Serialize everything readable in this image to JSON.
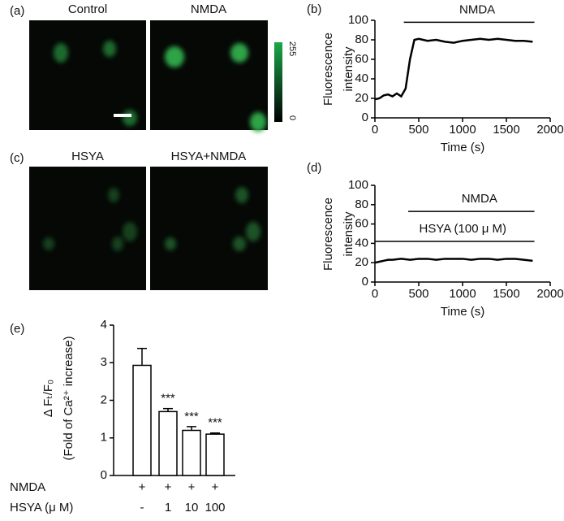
{
  "image_panels": [
    {
      "label": "(a)",
      "titles": [
        "Control",
        "NMDA"
      ],
      "colorbar": [
        "255",
        "0"
      ]
    },
    {
      "label": "(c)",
      "titles": [
        "HSYA",
        "HSYA+NMDA"
      ]
    }
  ],
  "chart_data": [
    {
      "type": "line",
      "label": "(b)",
      "ylabel": [
        "Fluorescence",
        "intensity"
      ],
      "xlabel": "Time (s)",
      "xlim": [
        0,
        2000
      ],
      "xticks": [
        0,
        500,
        1000,
        1500,
        2000
      ],
      "ylim": [
        0,
        100
      ],
      "yticks": [
        0,
        20,
        40,
        60,
        80,
        100
      ],
      "annotations": [
        {
          "text": "NMDA",
          "start": 330,
          "end": 1820,
          "y": 98
        }
      ],
      "series": [
        {
          "color": "#000000",
          "x": [
            0,
            50,
            100,
            150,
            200,
            250,
            300,
            350,
            400,
            450,
            500,
            550,
            600,
            700,
            800,
            900,
            1000,
            1100,
            1200,
            1300,
            1400,
            1500,
            1600,
            1700,
            1800
          ],
          "values": [
            19,
            20,
            23,
            24,
            22,
            25,
            22,
            30,
            60,
            80,
            81,
            80,
            79,
            80,
            78,
            77,
            79,
            80,
            81,
            80,
            81,
            80,
            79,
            79,
            78
          ]
        }
      ]
    },
    {
      "type": "line",
      "label": "(d)",
      "ylabel": [
        "Fluorescence",
        "intensity"
      ],
      "xlabel": "Time (s)",
      "xlim": [
        0,
        2000
      ],
      "xticks": [
        0,
        500,
        1000,
        1500,
        2000
      ],
      "ylim": [
        0,
        100
      ],
      "yticks": [
        0,
        20,
        40,
        60,
        80,
        100
      ],
      "annotations": [
        {
          "text": "NMDA",
          "start": 380,
          "end": 1820,
          "y": 73
        },
        {
          "text": "HSYA (100 μ M)",
          "start": 0,
          "end": 1820,
          "y": 42
        }
      ],
      "series": [
        {
          "color": "#000000",
          "x": [
            0,
            50,
            100,
            150,
            200,
            300,
            400,
            500,
            600,
            700,
            800,
            900,
            1000,
            1100,
            1200,
            1300,
            1400,
            1500,
            1600,
            1700,
            1800
          ],
          "values": [
            20,
            21,
            22,
            23,
            23,
            24,
            23,
            24,
            24,
            23,
            24,
            24,
            24,
            23,
            24,
            24,
            23,
            24,
            24,
            23,
            22
          ]
        }
      ]
    },
    {
      "type": "bar",
      "label": "(e)",
      "ylabel": [
        "Δ Fₜ/F₀",
        "(Fold of Ca²⁺ increase)"
      ],
      "ylim": [
        0,
        4
      ],
      "yticks": [
        0,
        1,
        2,
        3,
        4
      ],
      "values": [
        2.93,
        1.7,
        1.2,
        1.1
      ],
      "errors": [
        0.45,
        0.08,
        0.1,
        0.03
      ],
      "significance": [
        null,
        "***",
        "***",
        "***"
      ],
      "row_labels": [
        "NMDA",
        "HSYA (μ M)"
      ],
      "rows": [
        [
          "+",
          "+",
          "+",
          "+"
        ],
        [
          "-",
          "1",
          "10",
          "100"
        ]
      ],
      "color": "#ffffff"
    }
  ]
}
